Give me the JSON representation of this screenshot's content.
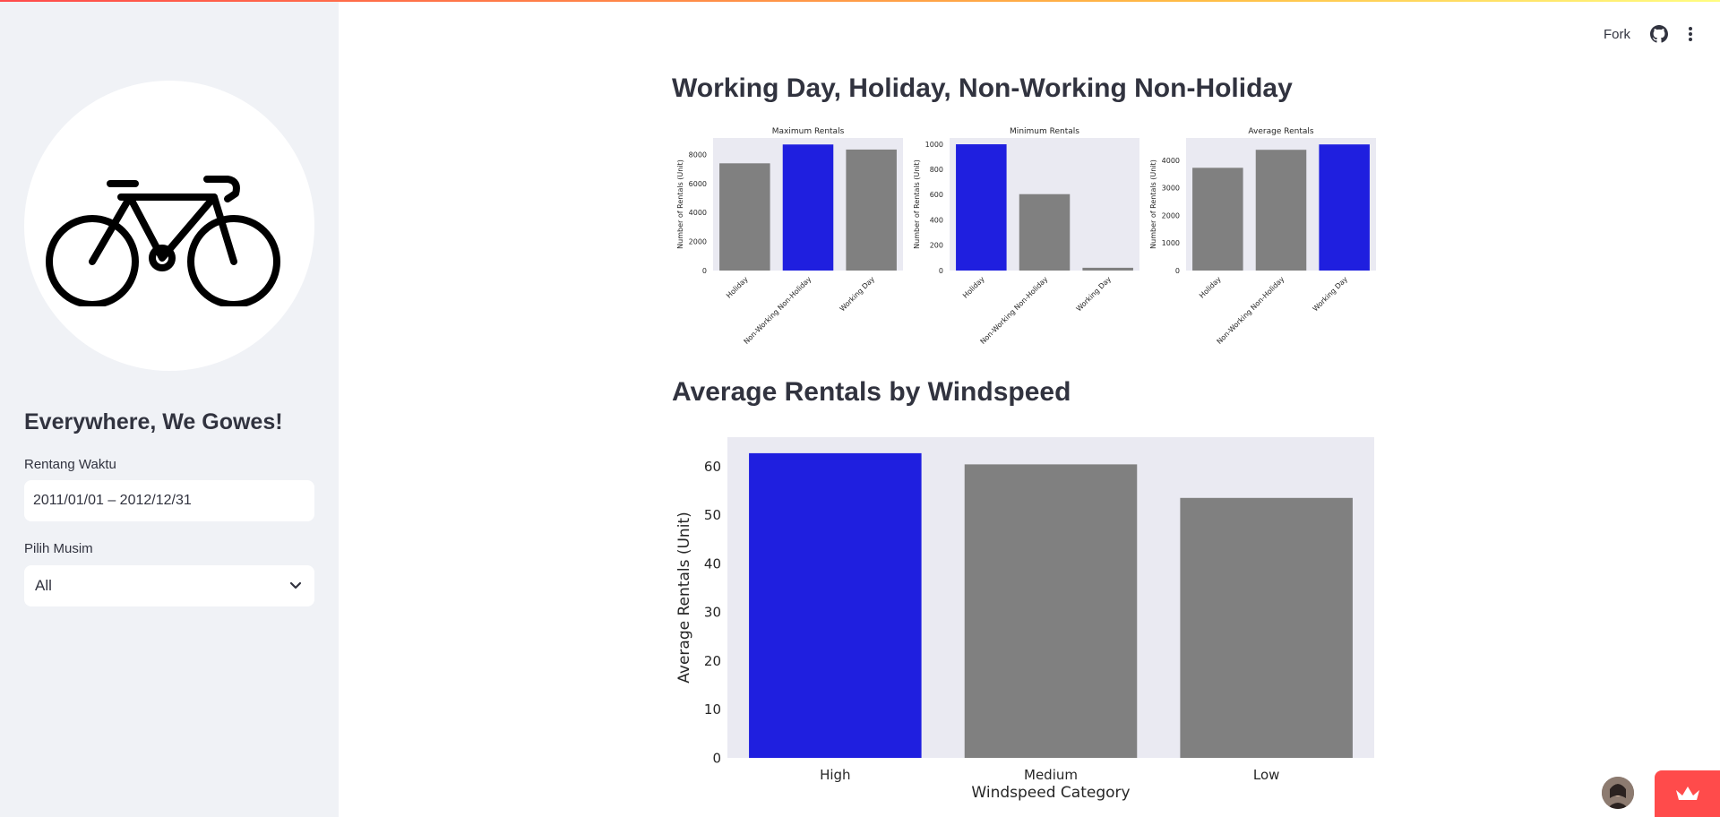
{
  "sidebar": {
    "logo_icon": "bicycle-icon",
    "title": "Everywhere, We Gowes!",
    "date_range": {
      "label": "Rentang Waktu",
      "value": "2011/01/01 – 2012/12/31"
    },
    "season": {
      "label": "Pilih Musim",
      "selected": "All"
    }
  },
  "header": {
    "fork_label": "Fork",
    "github_icon": "github-icon",
    "menu_icon": "more-vertical-icon"
  },
  "main": {
    "section1_title": "Working Day, Holiday, Non-Working Non-Holiday",
    "section2_title": "Average Rentals by Windspeed"
  },
  "colors": {
    "highlight": "#1f1fdf",
    "muted": "#808080",
    "plot_bg": "#eaeaf2"
  },
  "chart_data": [
    {
      "type": "bar",
      "title": "Maximum Rentals",
      "ylabel": "Number of Rentals (Unit)",
      "xlabel": "",
      "categories": [
        "Holiday",
        "Non-Working Non-Holiday",
        "Working Day"
      ],
      "values": [
        7400,
        8700,
        8350
      ],
      "yticks": [
        0,
        2000,
        4000,
        6000,
        8000
      ],
      "ylim": [
        0,
        9150
      ],
      "highlight_index": 1,
      "grid": false
    },
    {
      "type": "bar",
      "title": "Minimum Rentals",
      "ylabel": "Number of Rentals (Unit)",
      "xlabel": "",
      "categories": [
        "Holiday",
        "Non-Working Non-Holiday",
        "Working Day"
      ],
      "values": [
        1000,
        605,
        22
      ],
      "yticks": [
        0,
        200,
        400,
        600,
        800,
        1000
      ],
      "ylim": [
        0,
        1050
      ],
      "highlight_index": 0,
      "grid": false
    },
    {
      "type": "bar",
      "title": "Average Rentals",
      "ylabel": "Number of Rentals (Unit)",
      "xlabel": "",
      "categories": [
        "Holiday",
        "Non-Working Non-Holiday",
        "Working Day"
      ],
      "values": [
        3735,
        4390,
        4585
      ],
      "yticks": [
        0,
        1000,
        2000,
        3000,
        4000
      ],
      "ylim": [
        0,
        4820
      ],
      "highlight_index": 2,
      "grid": false
    },
    {
      "type": "bar",
      "title": "",
      "ylabel": "Average Rentals (Unit)",
      "xlabel": "Windspeed Category",
      "categories": [
        "High",
        "Medium",
        "Low"
      ],
      "values": [
        62.7,
        60.4,
        53.5
      ],
      "yticks": [
        0,
        10,
        20,
        30,
        40,
        50,
        60
      ],
      "ylim": [
        0,
        66
      ],
      "highlight_index": 0,
      "grid": false
    }
  ]
}
